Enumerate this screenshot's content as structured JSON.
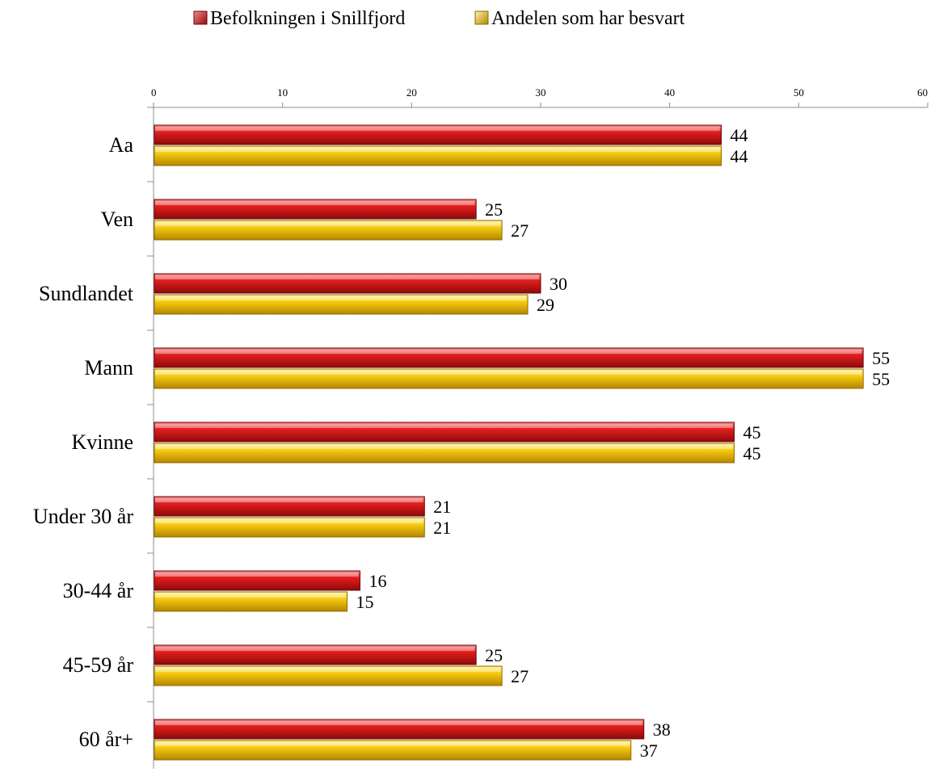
{
  "chart_data": {
    "type": "bar",
    "orientation": "horizontal",
    "categories": [
      "Aa",
      "Ven",
      "Sundlandet",
      "Mann",
      "Kvinne",
      "Under 30 år",
      "30-44 år",
      "45-59 år",
      "60 år+"
    ],
    "series": [
      {
        "name": "Befolkningen i Snillfjord",
        "values": [
          44,
          25,
          30,
          55,
          45,
          21,
          16,
          25,
          38
        ],
        "color": "#e01e1e"
      },
      {
        "name": "Andelen som har besvart",
        "values": [
          44,
          27,
          29,
          55,
          45,
          21,
          15,
          27,
          37
        ],
        "color": "#f5c400"
      }
    ],
    "xlim": [
      0,
      60
    ],
    "x_ticks": [
      0,
      10,
      20,
      30,
      40,
      50,
      60
    ],
    "x_axis_position": "top",
    "grid": false,
    "legend_position": "top-center",
    "title": "",
    "xlabel": "",
    "ylabel": ""
  }
}
